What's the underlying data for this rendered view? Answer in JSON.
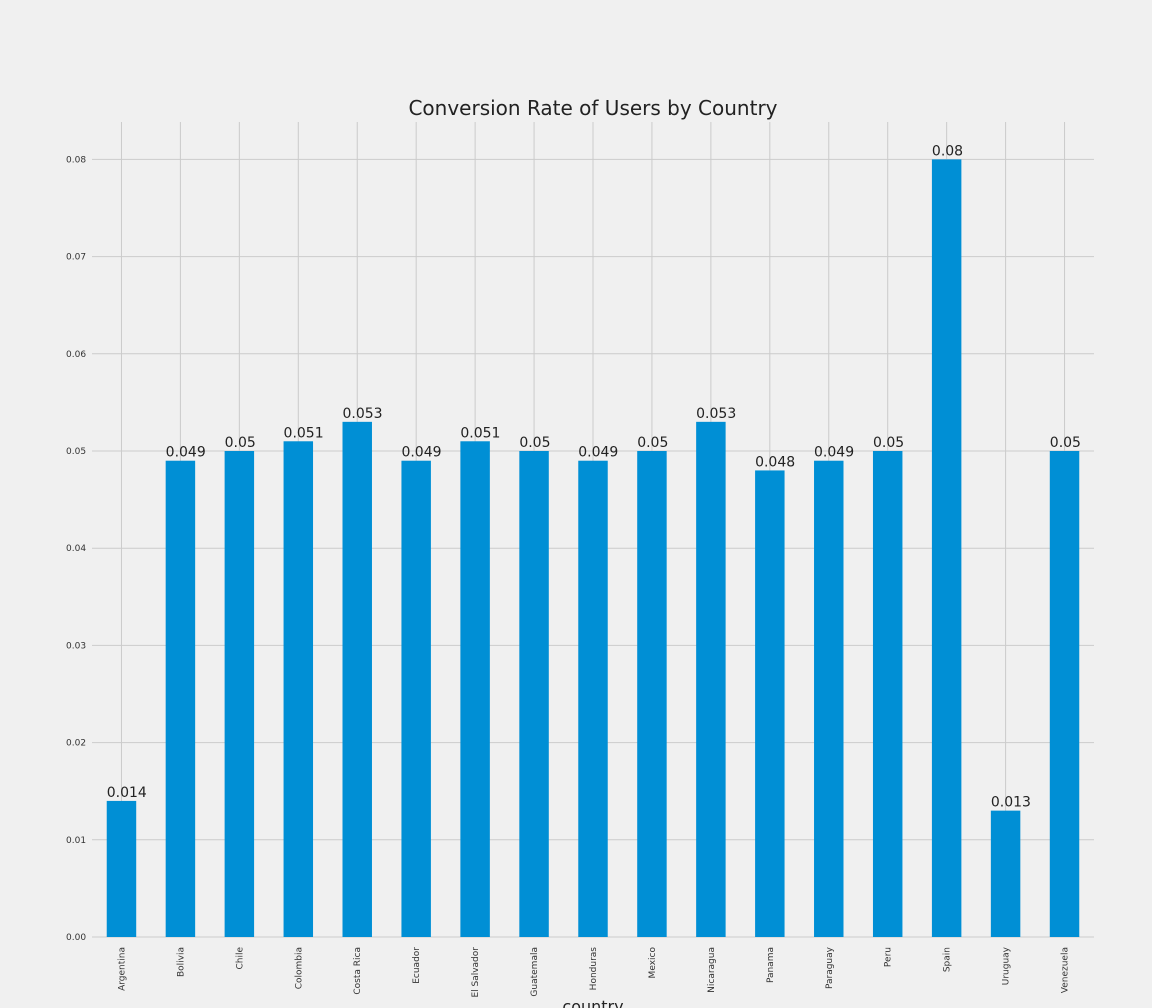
{
  "chart_data": {
    "type": "bar",
    "title": "Conversion Rate of Users by Country",
    "xlabel": "country",
    "ylabel": "",
    "categories": [
      "Argentina",
      "Bolivia",
      "Chile",
      "Colombia",
      "Costa Rica",
      "Ecuador",
      "El Salvador",
      "Guatemala",
      "Honduras",
      "Mexico",
      "Nicaragua",
      "Panama",
      "Paraguay",
      "Peru",
      "Spain",
      "Uruguay",
      "Venezuela"
    ],
    "values": [
      0.014,
      0.049,
      0.05,
      0.051,
      0.053,
      0.049,
      0.051,
      0.05,
      0.049,
      0.05,
      0.053,
      0.048,
      0.049,
      0.05,
      0.08,
      0.013,
      0.05
    ],
    "value_labels": [
      "0.014",
      "0.049",
      "0.05",
      "0.051",
      "0.053",
      "0.049",
      "0.051",
      "0.05",
      "0.049",
      "0.05",
      "0.053",
      "0.048",
      "0.049",
      "0.05",
      "0.08",
      "0.013",
      "0.05"
    ],
    "yticks": [
      0.0,
      0.01,
      0.02,
      0.03,
      0.04,
      0.05,
      0.06,
      0.07,
      0.08
    ],
    "ytick_labels": [
      "0.00",
      "0.01",
      "0.02",
      "0.03",
      "0.04",
      "0.05",
      "0.06",
      "0.07",
      "0.08"
    ],
    "ylim": [
      0,
      0.084
    ],
    "grid": true,
    "legend": "none",
    "colors": {
      "bar": "#008fd5",
      "background": "#f0f0f0",
      "grid": "#cbcbcb"
    }
  }
}
